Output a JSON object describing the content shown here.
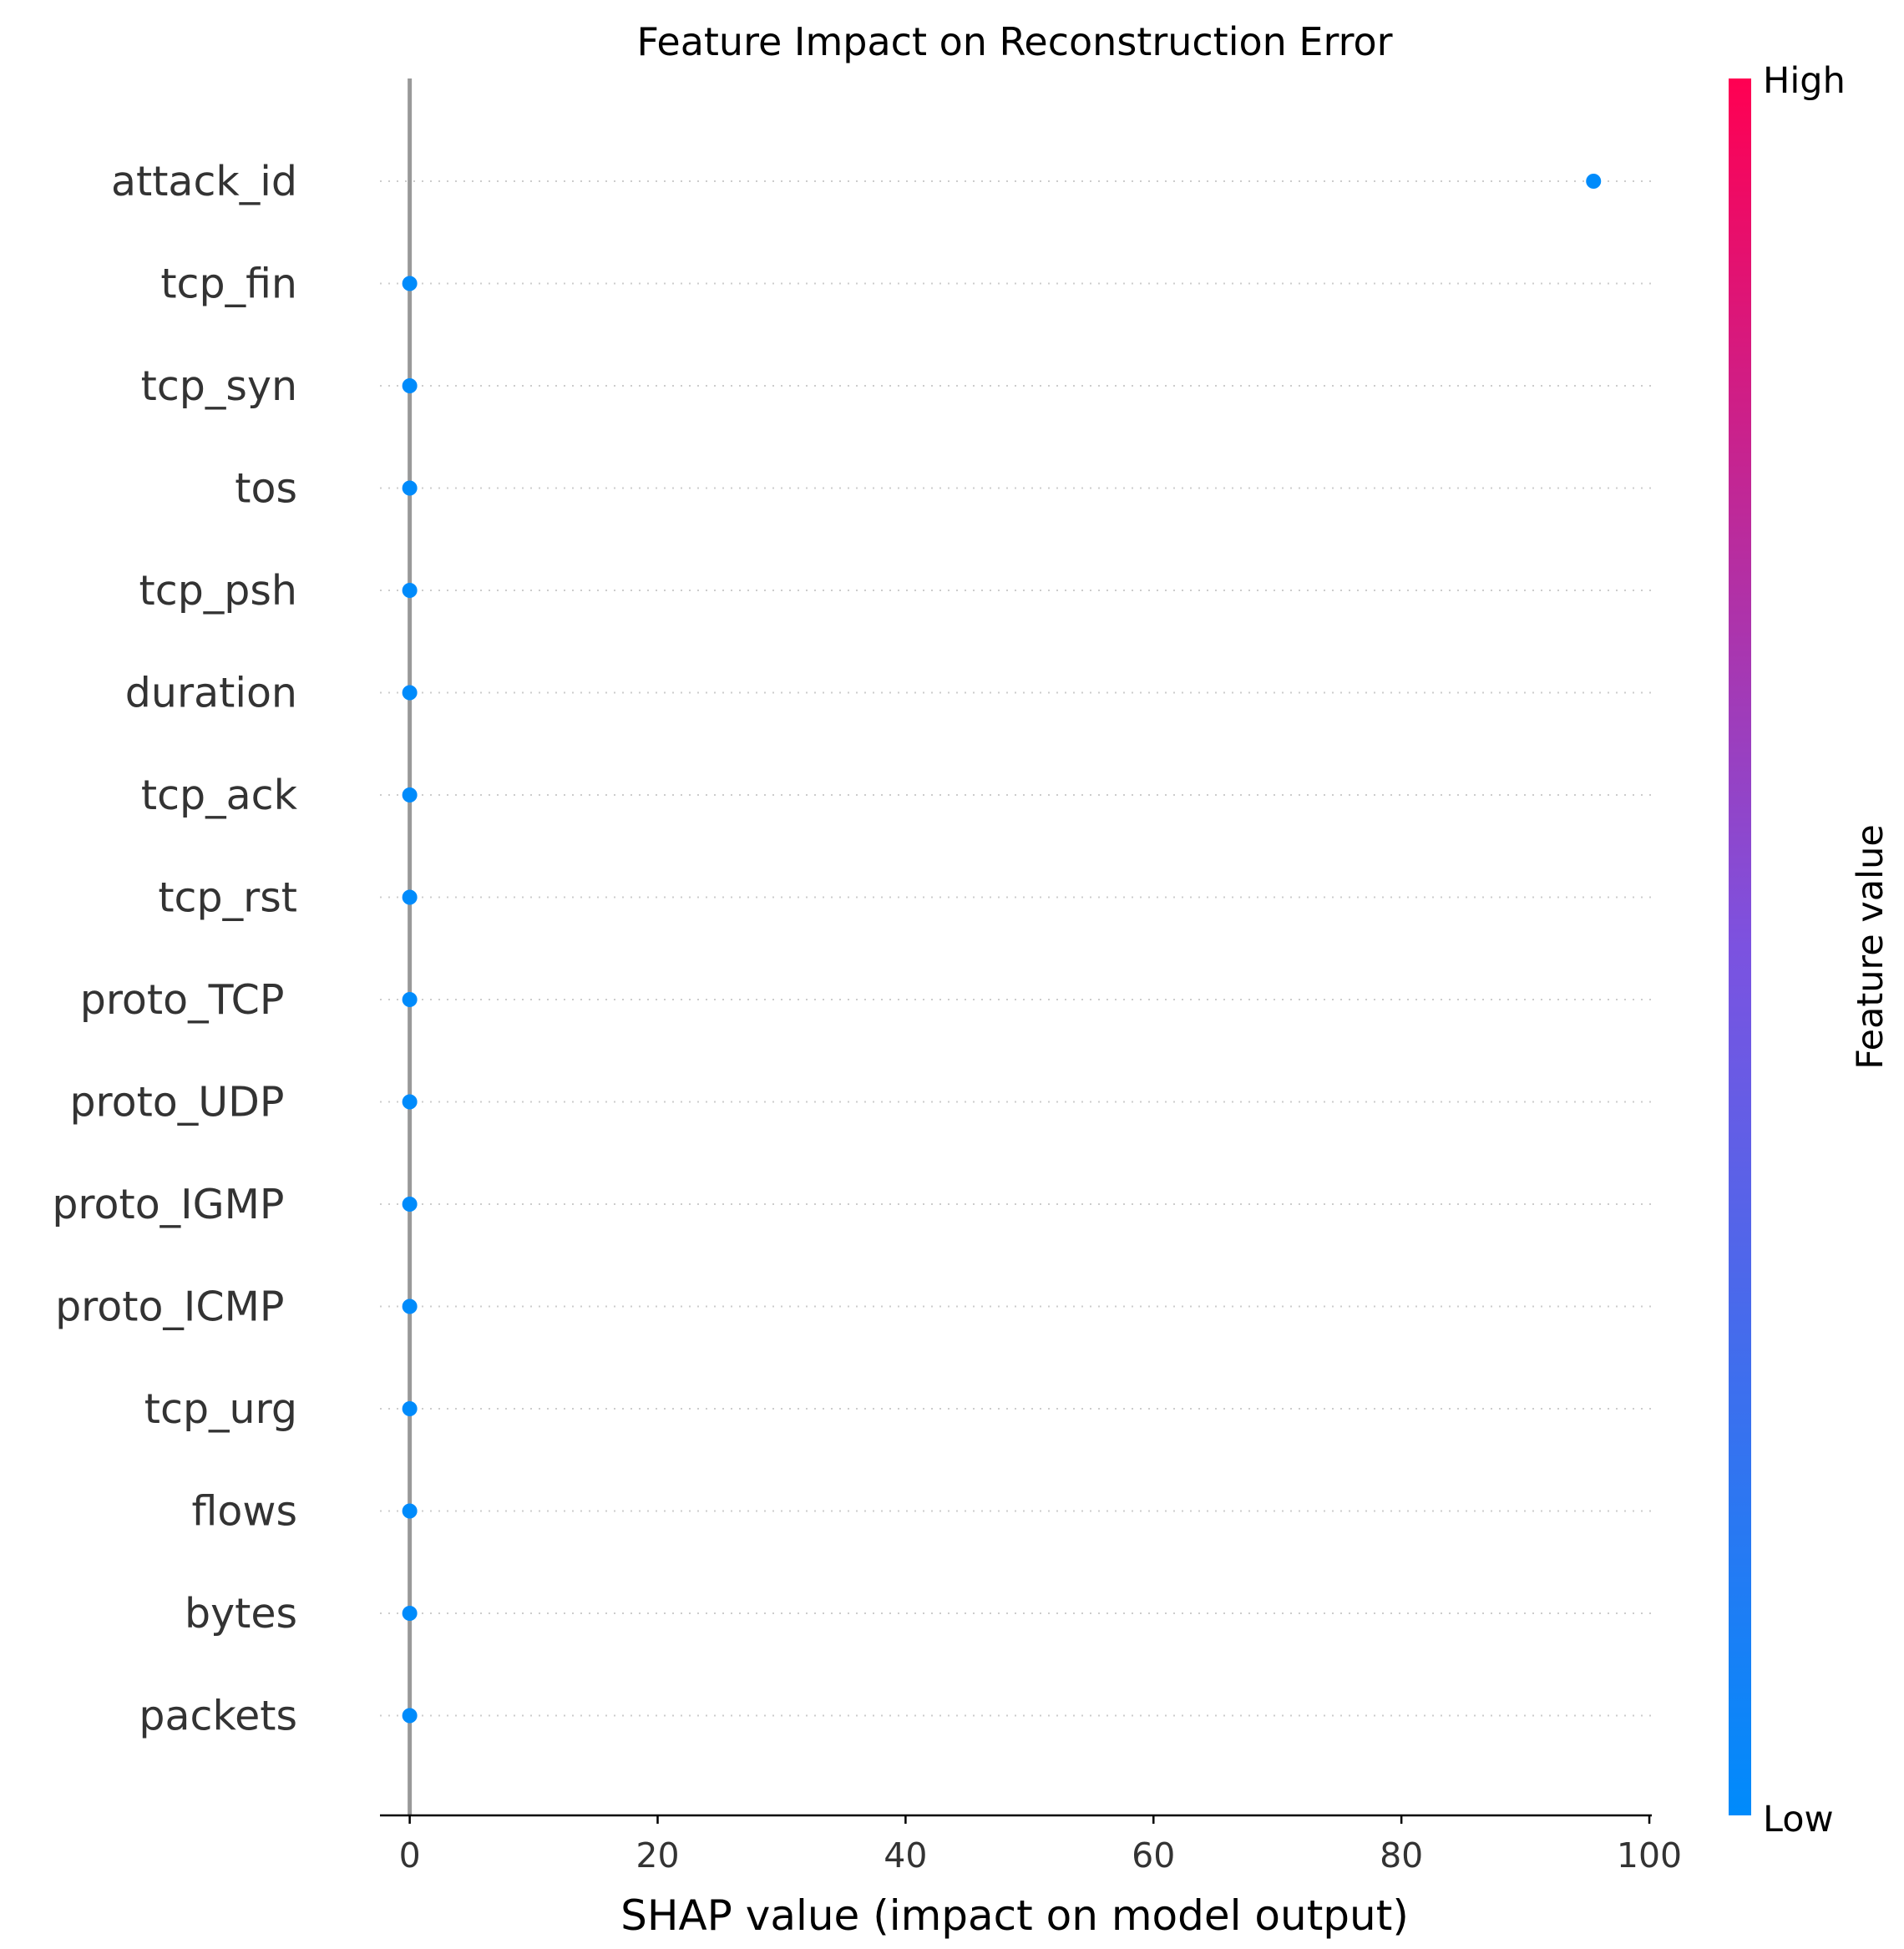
{
  "chart_data": {
    "type": "scatter",
    "title": "Feature Impact on Reconstruction Error",
    "xlabel": "SHAP value (impact on model output)",
    "xlim": [
      -2.4,
      100.2
    ],
    "xticks": [
      0,
      20,
      40,
      60,
      80,
      100
    ],
    "features": [
      {
        "name": "attack_id",
        "shap": 95.5
      },
      {
        "name": "tcp_fin",
        "shap": 0
      },
      {
        "name": "tcp_syn",
        "shap": 0
      },
      {
        "name": "tos",
        "shap": 0
      },
      {
        "name": "tcp_psh",
        "shap": 0
      },
      {
        "name": "duration",
        "shap": 0
      },
      {
        "name": "tcp_ack",
        "shap": 0
      },
      {
        "name": "tcp_rst",
        "shap": 0
      },
      {
        "name": "proto_TCP ",
        "shap": 0
      },
      {
        "name": "proto_UDP ",
        "shap": 0
      },
      {
        "name": "proto_IGMP ",
        "shap": 0
      },
      {
        "name": "proto_ICMP ",
        "shap": 0
      },
      {
        "name": "tcp_urg",
        "shap": 0
      },
      {
        "name": "flows",
        "shap": 0
      },
      {
        "name": "bytes",
        "shap": 0
      },
      {
        "name": "packets",
        "shap": 0
      }
    ],
    "point_color": "#008bfb",
    "zero_line_color": "#999999",
    "colorbar": {
      "label": "Feature value",
      "high_label": "High",
      "low_label": "Low",
      "colors": [
        "#008bfb",
        "#0067ef",
        "#7c52e0",
        "#b422a8",
        "#ff0052"
      ]
    }
  }
}
